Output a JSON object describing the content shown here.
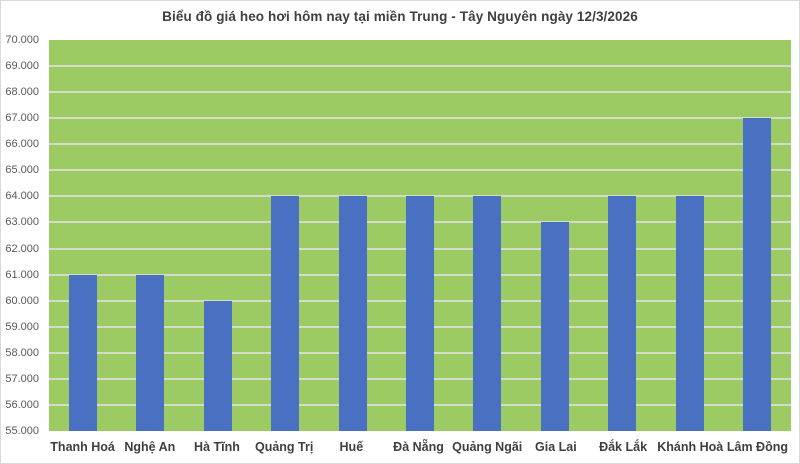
{
  "chart_data": {
    "type": "bar",
    "title": "Biểu đồ giá heo hơi hôm nay tại miền Trung - Tây Nguyên ngày 12/3/2026",
    "categories": [
      "Thanh Hoá",
      "Nghệ An",
      "Hà Tĩnh",
      "Quảng Trị",
      "Huế",
      "Đà Nẵng",
      "Quảng Ngãi",
      "Gia Lai",
      "Đắk Lắk",
      "Khánh Hoà",
      "Lâm Đồng"
    ],
    "values": [
      61000,
      61000,
      60000,
      64000,
      64000,
      64000,
      64000,
      63000,
      64000,
      64000,
      67000
    ],
    "xlabel": "",
    "ylabel": "",
    "ylim": [
      55000,
      70000
    ],
    "y_step": 1000,
    "y_tick_labels": [
      "70.000",
      "69.000",
      "68.000",
      "67.000",
      "66.000",
      "65.000",
      "64.000",
      "63.000",
      "62.000",
      "61.000",
      "60.000",
      "59.000",
      "58.000",
      "57.000",
      "56.000",
      "55.000"
    ],
    "grid": true,
    "legend": "none",
    "colors": {
      "bar": "#4a70c2",
      "plot_background": "#9cca63",
      "gridline": "#d4dcc9",
      "title_text": "#3f3f3f",
      "y_tick_text": "#595959",
      "x_tick_text": "#3f3f3f",
      "frame_border": "#d9d9d9",
      "page_background": "#ffffff"
    }
  }
}
